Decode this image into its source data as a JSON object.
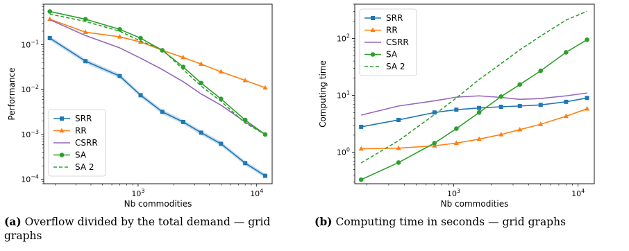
{
  "captions": {
    "a": {
      "tag": "(a)",
      "text": "Overflow divided by the total demand — grid graphs"
    },
    "b": {
      "tag": "(b)",
      "text": "Computing time in seconds — grid graphs"
    }
  },
  "colors": {
    "SRR": "#1f77b4",
    "RR": "#ff7f0e",
    "CSRR": "#9467bd",
    "SA": "#2ca02c",
    "SA 2": "#2ca02c"
  },
  "chart_data": [
    {
      "type": "line",
      "xlabel": "Nb commodities",
      "ylabel": "Performance",
      "xscale": "log",
      "yscale": "log",
      "xlim": [
        160,
        13500
      ],
      "ylim": [
        8e-05,
        0.8
      ],
      "xticks": [
        {
          "v": 1000,
          "m": "10",
          "e": "3"
        },
        {
          "v": 10000,
          "m": "10",
          "e": "4"
        }
      ],
      "yticks": [
        {
          "v": 0.0001,
          "m": "10",
          "e": "−4"
        },
        {
          "v": 0.001,
          "m": "10",
          "e": "−3"
        },
        {
          "v": 0.01,
          "m": "10",
          "e": "−2"
        },
        {
          "v": 0.1,
          "m": "10",
          "e": "−1"
        }
      ],
      "legend_position": "lower-left",
      "x": [
        180,
        360,
        700,
        1050,
        1600,
        2400,
        3400,
        5000,
        8000,
        11800
      ],
      "series": [
        {
          "name": "SRR",
          "marker": "square",
          "style": "solid",
          "band": true,
          "values": [
            0.14,
            0.043,
            0.02,
            0.0075,
            0.0032,
            0.0019,
            0.0011,
            0.00062,
            0.00023,
            0.00012
          ]
        },
        {
          "name": "RR",
          "marker": "triangle",
          "style": "solid",
          "values": [
            0.37,
            0.19,
            0.15,
            0.115,
            0.075,
            0.052,
            0.037,
            0.025,
            0.016,
            0.011
          ]
        },
        {
          "name": "CSRR",
          "marker": "none",
          "style": "solid",
          "values": [
            0.36,
            0.16,
            0.085,
            0.05,
            0.028,
            0.015,
            0.008,
            0.0045,
            0.0019,
            0.001
          ]
        },
        {
          "name": "SA",
          "marker": "circle",
          "style": "solid",
          "values": [
            0.55,
            0.37,
            0.22,
            0.14,
            0.075,
            0.032,
            0.014,
            0.0062,
            0.0021,
            0.001
          ]
        },
        {
          "name": "SA 2",
          "marker": "none",
          "style": "dashed",
          "values": [
            0.48,
            0.33,
            0.2,
            0.12,
            0.078,
            0.028,
            0.012,
            0.0055,
            0.0018,
            0.001
          ]
        }
      ]
    },
    {
      "type": "line",
      "xlabel": "Nb commodities",
      "ylabel": "Computing time",
      "xscale": "log",
      "yscale": "log",
      "xlim": [
        160,
        13500
      ],
      "ylim": [
        0.28,
        400
      ],
      "xticks": [
        {
          "v": 1000,
          "m": "10",
          "e": "3"
        },
        {
          "v": 10000,
          "m": "10",
          "e": "4"
        }
      ],
      "yticks": [
        {
          "v": 1,
          "m": "10",
          "e": "0"
        },
        {
          "v": 10,
          "m": "10",
          "e": "1"
        },
        {
          "v": 100,
          "m": "10",
          "e": "2"
        }
      ],
      "legend_position": "upper-left",
      "x": [
        180,
        360,
        700,
        1050,
        1600,
        2400,
        3400,
        5000,
        8000,
        11800
      ],
      "series": [
        {
          "name": "SRR",
          "marker": "square",
          "style": "solid",
          "values": [
            2.8,
            3.7,
            5.0,
            5.6,
            6.0,
            6.3,
            6.5,
            6.8,
            7.7,
            9.0
          ]
        },
        {
          "name": "RR",
          "marker": "triangle",
          "style": "solid",
          "values": [
            1.15,
            1.18,
            1.3,
            1.45,
            1.7,
            2.05,
            2.5,
            3.1,
            4.3,
            5.8
          ]
        },
        {
          "name": "CSRR",
          "marker": "none",
          "style": "solid",
          "values": [
            4.5,
            6.5,
            8.0,
            9.3,
            9.8,
            9.2,
            8.5,
            8.8,
            9.8,
            11.0
          ]
        },
        {
          "name": "SA",
          "marker": "circle",
          "style": "solid",
          "values": [
            0.33,
            0.66,
            1.45,
            2.6,
            5.0,
            9.5,
            15.5,
            27.0,
            57.0,
            95.0
          ]
        },
        {
          "name": "SA 2",
          "marker": "none",
          "style": "dashed",
          "values": [
            0.65,
            1.6,
            4.6,
            9.0,
            19.0,
            36.0,
            63.0,
            110.0,
            210.0,
            300.0
          ]
        }
      ]
    }
  ]
}
